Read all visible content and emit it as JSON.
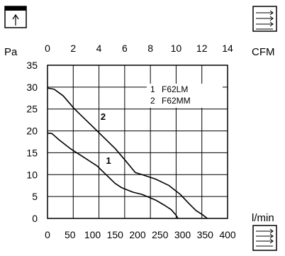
{
  "chart_data": {
    "type": "line",
    "x_label_top": "CFM",
    "x_label_bottom": "l/min",
    "y_label": "Pa",
    "top_ticks": [
      0,
      2,
      4,
      6,
      8,
      10,
      12,
      14
    ],
    "bottom_ticks": [
      0,
      50,
      100,
      150,
      200,
      250,
      300,
      350,
      400
    ],
    "y_ticks": [
      0,
      5,
      10,
      15,
      20,
      25,
      30,
      35
    ],
    "xlim": [
      0,
      400
    ],
    "ylim": [
      0,
      35
    ],
    "grid": true,
    "legend_position": "top-right",
    "legend": [
      {
        "key": "1",
        "name": "F62LM"
      },
      {
        "key": "2",
        "name": "F62MM"
      }
    ],
    "series": [
      {
        "name": "1",
        "points": [
          [
            0,
            19.5
          ],
          [
            10,
            19.4
          ],
          [
            25,
            18
          ],
          [
            50,
            16
          ],
          [
            80,
            14
          ],
          [
            110,
            12
          ],
          [
            130,
            10
          ],
          [
            150,
            8
          ],
          [
            165,
            7
          ],
          [
            190,
            6
          ],
          [
            210,
            5.5
          ],
          [
            240,
            4.2
          ],
          [
            260,
            3
          ],
          [
            275,
            2
          ],
          [
            285,
            0.8
          ],
          [
            290,
            0
          ]
        ]
      },
      {
        "name": "2",
        "points": [
          [
            0,
            29.8
          ],
          [
            15,
            29.5
          ],
          [
            35,
            28
          ],
          [
            60,
            25
          ],
          [
            90,
            22
          ],
          [
            120,
            19
          ],
          [
            150,
            16
          ],
          [
            175,
            13
          ],
          [
            195,
            10.5
          ],
          [
            210,
            10
          ],
          [
            240,
            9
          ],
          [
            270,
            7.5
          ],
          [
            295,
            5.5
          ],
          [
            315,
            3.3
          ],
          [
            330,
            1.8
          ],
          [
            345,
            0.8
          ],
          [
            355,
            0
          ]
        ]
      }
    ],
    "series_labels": [
      {
        "series": "1",
        "text": "1",
        "x": 130,
        "y": 12.5
      },
      {
        "series": "2",
        "text": "2",
        "x": 118,
        "y": 22.5
      }
    ]
  }
}
